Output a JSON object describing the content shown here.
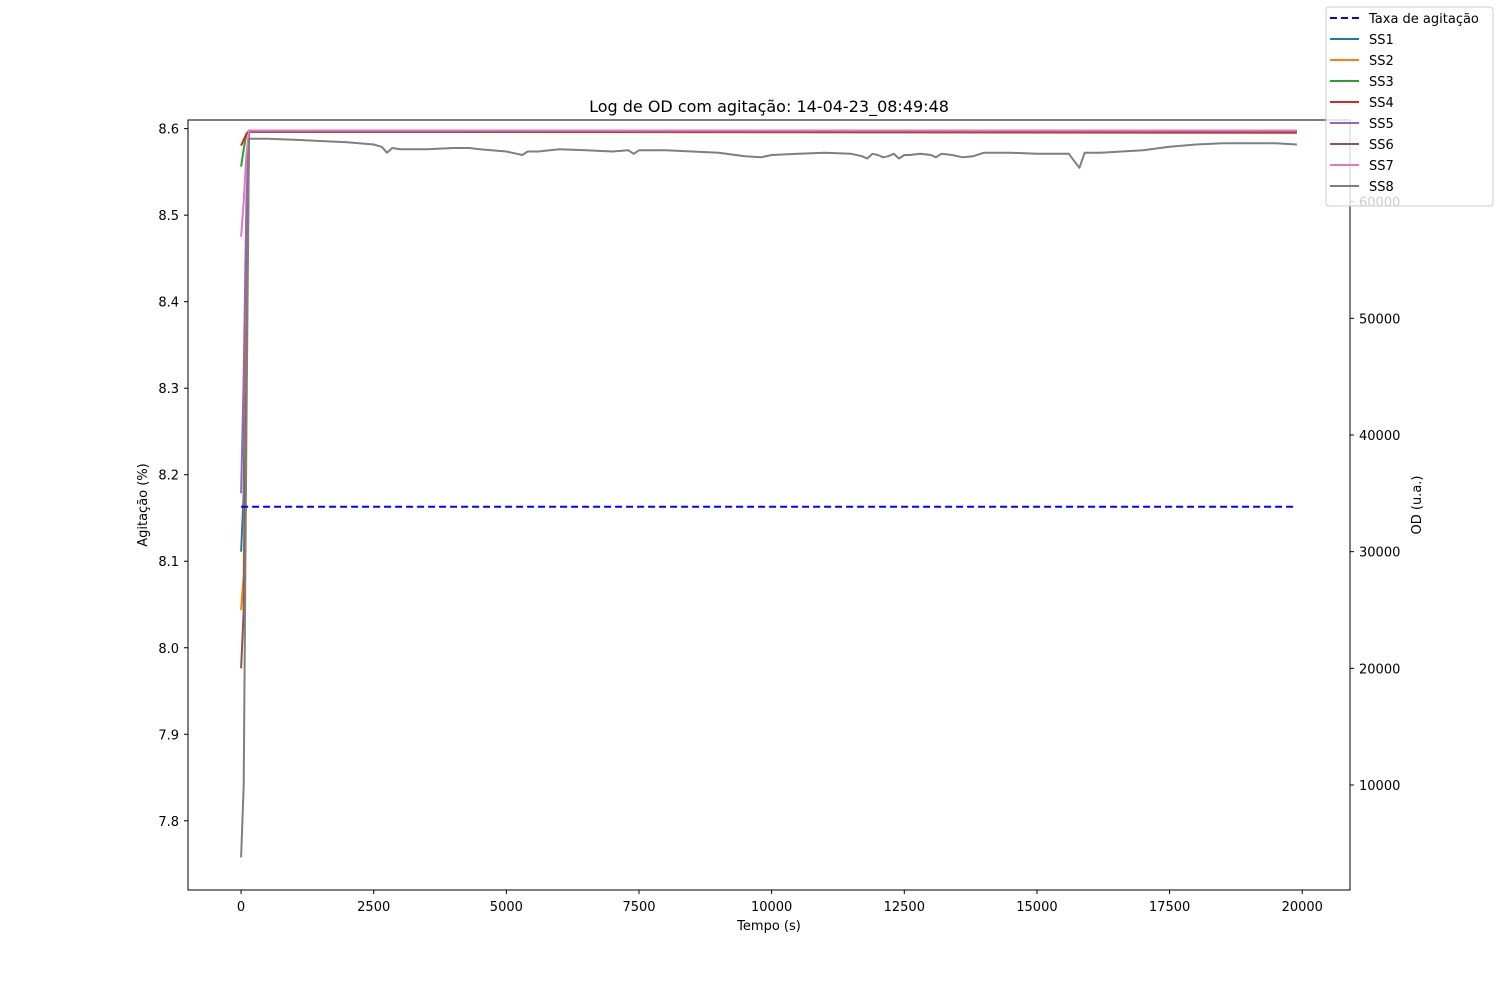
{
  "chart_data": {
    "type": "line",
    "title": "Log de OD com agitação: 14-04-23_08:49:48",
    "xlabel": "Tempo (s)",
    "ylabel_left": "Agitação (%)",
    "ylabel_right": "OD (u.a.)",
    "xlim": [
      -1000,
      20900
    ],
    "ylim_left": [
      7.72,
      8.61
    ],
    "ylim_right": [
      1000,
      67000
    ],
    "x_ticks": [
      0,
      2500,
      5000,
      7500,
      10000,
      12500,
      15000,
      17500,
      20000
    ],
    "y_ticks_left": [
      7.8,
      7.9,
      8.0,
      8.1,
      8.2,
      8.3,
      8.4,
      8.5,
      8.6
    ],
    "y_ticks_right": [
      10000,
      20000,
      30000,
      40000,
      50000,
      60000
    ],
    "legend_position": "top-right",
    "grid": false,
    "series": [
      {
        "name": "Taxa de agitação",
        "axis": "left",
        "color": "#0000ff",
        "dash": true,
        "x": [
          0,
          19900
        ],
        "values": [
          8.163,
          8.163
        ]
      },
      {
        "name": "SS1",
        "axis": "right",
        "color": "#1f77b4",
        "x": [
          0,
          50,
          100,
          150,
          19900
        ],
        "values": [
          30000,
          35000,
          55000,
          66000,
          66000
        ]
      },
      {
        "name": "SS2",
        "axis": "right",
        "color": "#ff7f0e",
        "x": [
          0,
          50,
          100,
          150,
          19900
        ],
        "values": [
          25000,
          28000,
          50000,
          66000,
          66000
        ]
      },
      {
        "name": "SS3",
        "axis": "right",
        "color": "#2ca02c",
        "x": [
          0,
          50,
          100,
          150,
          19900
        ],
        "values": [
          63000,
          64500,
          65800,
          66100,
          66000
        ]
      },
      {
        "name": "SS4",
        "axis": "right",
        "color": "#d62728",
        "x": [
          0,
          50,
          100,
          150,
          19900
        ],
        "values": [
          64800,
          65300,
          65800,
          66000,
          65900
        ]
      },
      {
        "name": "SS5",
        "axis": "right",
        "color": "#9467bd",
        "x": [
          0,
          50,
          100,
          150,
          19900
        ],
        "values": [
          35000,
          45000,
          60000,
          66100,
          66100
        ]
      },
      {
        "name": "SS6",
        "axis": "right",
        "color": "#8c564b",
        "x": [
          0,
          50,
          100,
          150,
          19900
        ],
        "values": [
          20000,
          25000,
          45000,
          66000,
          66000
        ]
      },
      {
        "name": "SS7",
        "axis": "right",
        "color": "#e377c2",
        "x": [
          0,
          50,
          100,
          150,
          19900
        ],
        "values": [
          57000,
          60000,
          64000,
          66100,
          66100
        ]
      },
      {
        "name": "SS8",
        "axis": "right",
        "color": "#7f7f7f",
        "x": [
          0,
          50,
          100,
          150,
          500,
          1000,
          1500,
          2000,
          2500,
          2650,
          2750,
          2850,
          3000,
          3500,
          4000,
          4300,
          4500,
          5000,
          5200,
          5300,
          5400,
          5600,
          6000,
          6500,
          7000,
          7300,
          7400,
          7500,
          8000,
          8500,
          9000,
          9500,
          9800,
          10000,
          10500,
          11000,
          11500,
          11700,
          11800,
          11900,
          12000,
          12100,
          12200,
          12300,
          12400,
          12500,
          12600,
          12800,
          13000,
          13100,
          13200,
          13400,
          13600,
          13800,
          14000,
          14500,
          15000,
          15600,
          15700,
          15800,
          15900,
          16200,
          16600,
          17000,
          17500,
          18000,
          18500,
          19000,
          19500,
          19900
        ],
        "values": [
          3800,
          10000,
          40000,
          65400,
          65400,
          65300,
          65200,
          65100,
          64900,
          64700,
          64200,
          64600,
          64500,
          64500,
          64600,
          64600,
          64500,
          64300,
          64100,
          64000,
          64300,
          64300,
          64500,
          64400,
          64300,
          64400,
          64100,
          64400,
          64400,
          64300,
          64200,
          63900,
          63800,
          64000,
          64100,
          64200,
          64100,
          63900,
          63700,
          64100,
          64000,
          63800,
          63900,
          64100,
          63700,
          64000,
          64000,
          64100,
          64000,
          63800,
          64100,
          64000,
          63800,
          63900,
          64200,
          64200,
          64100,
          64100,
          63500,
          62900,
          64200,
          64200,
          64300,
          64400,
          64700,
          64900,
          65000,
          65000,
          65000,
          64900
        ]
      }
    ]
  }
}
